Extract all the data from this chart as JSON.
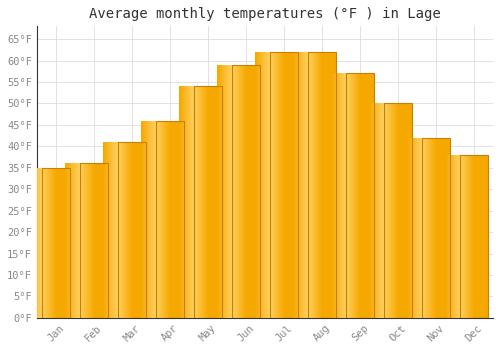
{
  "title": "Average monthly temperatures (°F ) in Lage",
  "months": [
    "Jan",
    "Feb",
    "Mar",
    "Apr",
    "May",
    "Jun",
    "Jul",
    "Aug",
    "Sep",
    "Oct",
    "Nov",
    "Dec"
  ],
  "values": [
    35,
    36,
    41,
    46,
    54,
    59,
    62,
    62,
    57,
    50,
    42,
    38
  ],
  "bar_color_center": "#FFD060",
  "bar_color_edge": "#F5A800",
  "background_color": "#FFFFFF",
  "ytick_labels": [
    "0°F",
    "5°F",
    "10°F",
    "15°F",
    "20°F",
    "25°F",
    "30°F",
    "35°F",
    "40°F",
    "45°F",
    "50°F",
    "55°F",
    "60°F",
    "65°F"
  ],
  "ytick_values": [
    0,
    5,
    10,
    15,
    20,
    25,
    30,
    35,
    40,
    45,
    50,
    55,
    60,
    65
  ],
  "ylim": [
    0,
    68
  ],
  "grid_color": "#DDDDDD",
  "title_fontsize": 10,
  "tick_fontsize": 7.5,
  "tick_color": "#888888"
}
